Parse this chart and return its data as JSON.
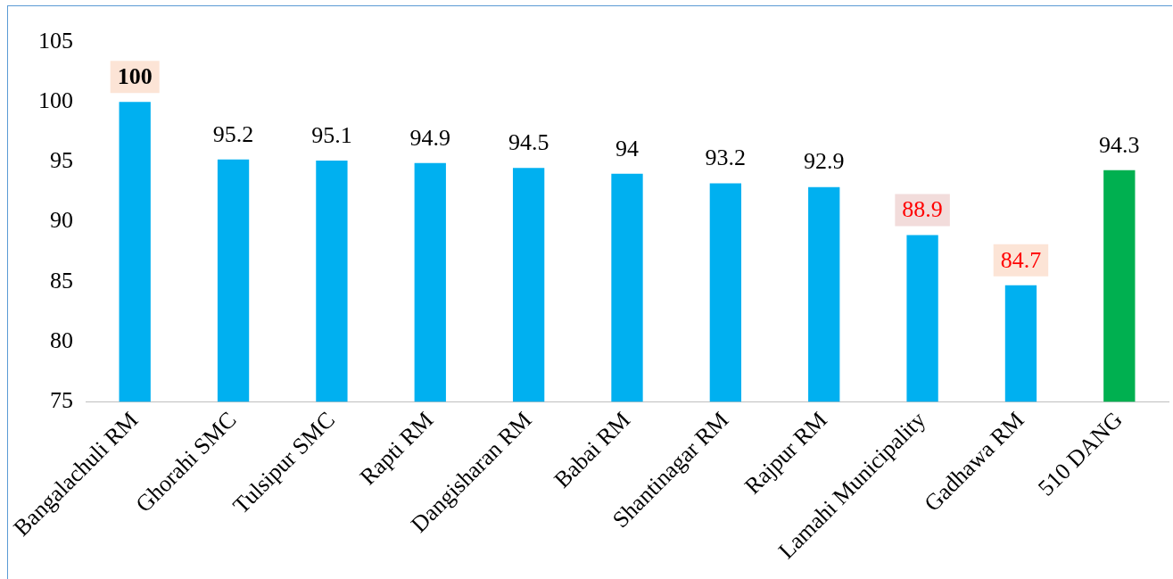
{
  "chart_data": {
    "type": "bar",
    "categories": [
      "Bangalachuli RM",
      "Ghorahi SMC",
      "Tulsipur SMC",
      "Rapti RM",
      "Dangisharan RM",
      "Babai RM",
      "Shantinagar RM",
      "Rajpur RM",
      "Lamahi Municipality",
      "Gadhawa RM",
      "510 DANG"
    ],
    "values": [
      100,
      95.2,
      95.1,
      94.9,
      94.5,
      94,
      93.2,
      92.9,
      88.9,
      84.7,
      94.3
    ],
    "colors": [
      "#00b0f0",
      "#00b0f0",
      "#00b0f0",
      "#00b0f0",
      "#00b0f0",
      "#00b0f0",
      "#00b0f0",
      "#00b0f0",
      "#00b0f0",
      "#00b0f0",
      "#00b050"
    ],
    "ylim": [
      75,
      105
    ],
    "yticks": [
      75,
      80,
      85,
      90,
      95,
      100,
      105
    ],
    "data_labels": true,
    "grid": false,
    "legend": false
  }
}
